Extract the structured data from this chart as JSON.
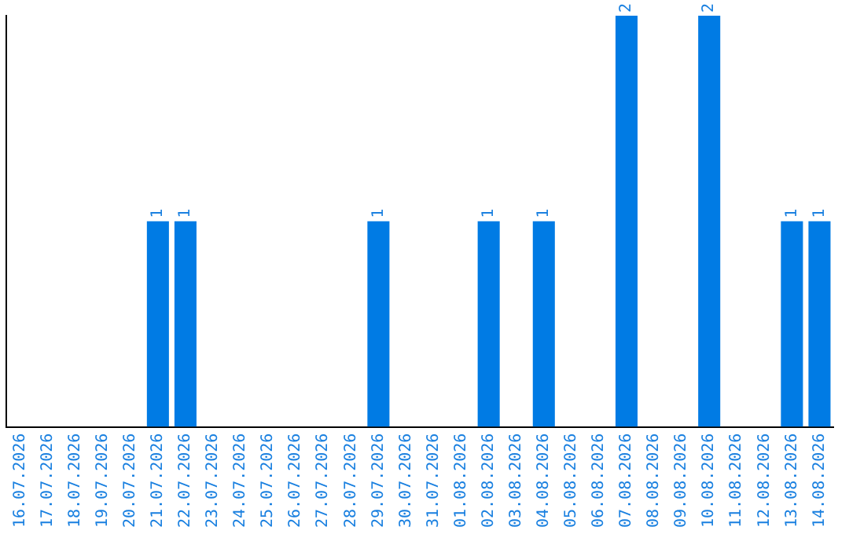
{
  "chart_data": {
    "type": "bar",
    "categories": [
      "16.07.2026",
      "17.07.2026",
      "18.07.2026",
      "19.07.2026",
      "20.07.2026",
      "21.07.2026",
      "22.07.2026",
      "23.07.2026",
      "24.07.2026",
      "25.07.2026",
      "26.07.2026",
      "27.07.2026",
      "28.07.2026",
      "29.07.2026",
      "30.07.2026",
      "31.07.2026",
      "01.08.2026",
      "02.08.2026",
      "03.08.2026",
      "04.08.2026",
      "05.08.2026",
      "06.08.2026",
      "07.08.2026",
      "08.08.2026",
      "09.08.2026",
      "10.08.2026",
      "11.08.2026",
      "12.08.2026",
      "13.08.2026",
      "14.08.2026"
    ],
    "values": [
      0,
      0,
      0,
      0,
      0,
      1,
      1,
      0,
      0,
      0,
      0,
      0,
      0,
      1,
      0,
      0,
      0,
      1,
      0,
      1,
      0,
      0,
      2,
      0,
      0,
      2,
      0,
      0,
      1,
      1
    ],
    "value_labels": [
      null,
      null,
      null,
      null,
      null,
      "1",
      "1",
      null,
      null,
      null,
      null,
      null,
      null,
      "1",
      null,
      null,
      null,
      "1",
      null,
      "1",
      null,
      null,
      "2",
      null,
      null,
      "2",
      null,
      null,
      "1",
      "1"
    ],
    "color": "#007be4",
    "tick_labels": "x",
    "grid": false,
    "legend": false
  }
}
